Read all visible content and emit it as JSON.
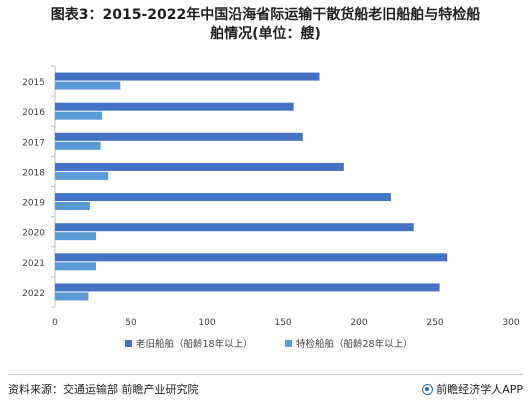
{
  "title_line1": "图表3：2015-2022年中国沿海省际运输干散货船老旧船舶与特检船",
  "title_line2": "舶情况(单位：艘)",
  "source": "资料来源：交通运输部 前瞻产业研究院",
  "brand": "前瞻经济学人APP",
  "colors": {
    "old_ships": "#4472c4",
    "special_inspection": "#5b9bd5",
    "axis": "#bfbfbf",
    "text": "#404040"
  },
  "chart_data": {
    "type": "bar",
    "orientation": "horizontal",
    "categories": [
      "2015",
      "2016",
      "2017",
      "2018",
      "2019",
      "2020",
      "2021",
      "2022"
    ],
    "series": [
      {
        "name": "老旧船舶（船龄18年以上）",
        "values": [
          174,
          157,
          163,
          190,
          221,
          236,
          258,
          253
        ]
      },
      {
        "name": "特检船舶（船龄28年以上）",
        "values": [
          43,
          31,
          30,
          35,
          23,
          27,
          27,
          22
        ]
      }
    ],
    "xlim": [
      0,
      300
    ],
    "xticks": [
      0,
      50,
      100,
      150,
      200,
      250,
      300
    ],
    "legend_position": "bottom",
    "grid": false
  }
}
